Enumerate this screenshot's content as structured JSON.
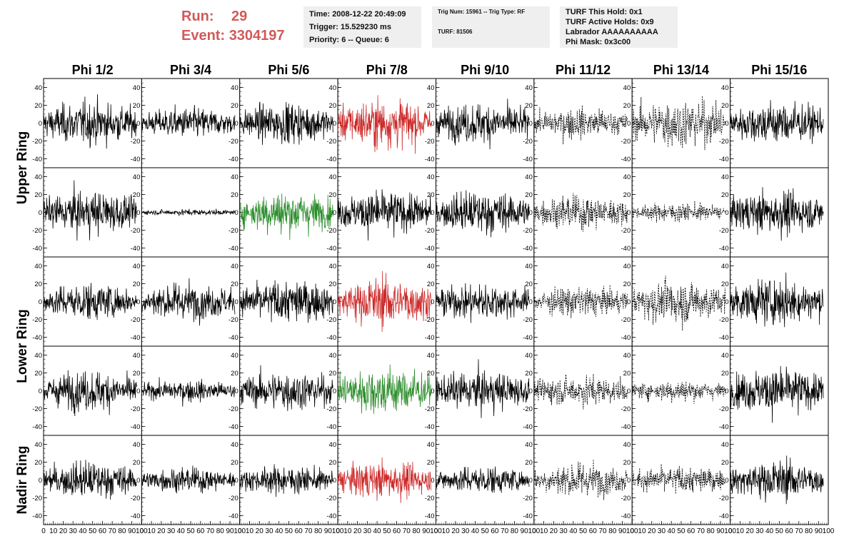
{
  "header": {
    "run_label": "Run:",
    "run_value": "29",
    "event_label": "Event:",
    "event_value": "3304197",
    "time_line": "Time: 2008-12-22 20:49:09",
    "trigger_line": "Trigger: 15.529230 ms",
    "priority_line": "Priority: 6 -- Queue: 6",
    "trig_num_line": "Trig Num: 15961 -- Trig Type: RF",
    "turf_line": "TURF: 81506",
    "turf_hold_line": "TURF This Hold: 0x1",
    "turf_active_line": "TURF Active Holds: 0x9",
    "labrador_line": "Labrador AAAAAAAAAA",
    "phi_mask_line": "Phi Mask: 0x3c00"
  },
  "chart_data": {
    "type": "line",
    "description_of_grid": "5 rows x 8 columns of waveform panels",
    "columns": [
      "Phi 1/2",
      "Phi 3/4",
      "Phi 5/6",
      "Phi 7/8",
      "Phi 9/10",
      "Phi 11/12",
      "Phi 13/14",
      "Phi 15/16"
    ],
    "rows": [
      "Upper Ring",
      "Upper Ring",
      "Lower Ring",
      "Lower Ring",
      "Nadir Ring"
    ],
    "row_group_labels": [
      "Upper Ring",
      "Lower Ring",
      "Nadir Ring"
    ],
    "xlim": [
      0,
      100
    ],
    "ylim": [
      -50,
      50
    ],
    "y_ticks": [
      -40,
      -20,
      0,
      20,
      40
    ],
    "x_ticks": [
      0,
      10,
      20,
      30,
      40,
      50,
      60,
      70,
      80,
      90,
      100
    ],
    "samples_per_trace": 260,
    "trace_x_range": [
      0,
      95
    ],
    "colors": {
      "normal": "#000000",
      "red": "#cc2a2a",
      "green": "#2a8c2a"
    },
    "panel_styles": [
      [
        "solid",
        "solid",
        "solid",
        "red",
        "solid",
        "dashed",
        "dashed",
        "solid"
      ],
      [
        "solid",
        "solid",
        "green",
        "solid",
        "solid",
        "dashed",
        "dashed",
        "solid"
      ],
      [
        "solid",
        "solid",
        "solid",
        "red",
        "solid",
        "dashed",
        "dashed",
        "solid"
      ],
      [
        "solid",
        "solid",
        "solid",
        "green",
        "solid",
        "dashed",
        "dashed",
        "solid"
      ],
      [
        "solid",
        "solid",
        "solid",
        "red",
        "solid",
        "dashed",
        "dashed",
        "solid"
      ]
    ],
    "panel_amplitudes": [
      [
        14,
        10,
        13,
        16,
        13,
        10,
        16,
        14
      ],
      [
        14,
        2,
        14,
        14,
        14,
        11,
        6,
        14
      ],
      [
        12,
        12,
        14,
        16,
        12,
        10,
        14,
        15
      ],
      [
        13,
        7,
        13,
        16,
        13,
        10,
        7,
        15
      ],
      [
        12,
        8,
        9,
        12,
        9,
        11,
        9,
        13
      ]
    ]
  }
}
